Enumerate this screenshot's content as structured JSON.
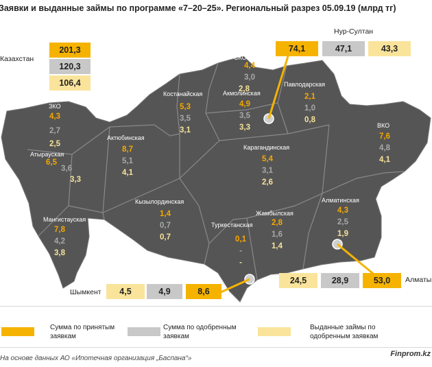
{
  "title": "Заявки и выданные займы по программе «7–20–25». Региональный разрез 05.09.19 (млрд тг)",
  "colors": {
    "accepted": "#f5b300",
    "approved": "#c8c8c8",
    "issued": "#fae49b",
    "map": "#555555"
  },
  "kazakhstan": {
    "label": "Казахстан",
    "accepted": "201,3",
    "approved": "120,3",
    "issued": "106,4"
  },
  "nursultan": {
    "label": "Нур-Султан",
    "accepted": "74,1",
    "approved": "47,1",
    "issued": "43,3"
  },
  "almaty": {
    "label": "Алматы",
    "issued": "24,5",
    "approved": "28,9",
    "accepted": "53,0"
  },
  "shymkent": {
    "label": "Шымкент",
    "issued": "4,5",
    "approved": "4,9",
    "accepted": "8,6"
  },
  "regions": [
    {
      "name": "СКО",
      "accepted": "4,4",
      "approved": "3,0",
      "issued": "2,8"
    },
    {
      "name": "Костанайская",
      "accepted": "5,3",
      "approved": "3,5",
      "issued": "3,1"
    },
    {
      "name": "Акмолинская",
      "accepted": "4,9",
      "approved": "3,5",
      "issued": "3,3"
    },
    {
      "name": "Павлодарская",
      "accepted": "2,1",
      "approved": "1,0",
      "issued": "0,8"
    },
    {
      "name": "ЗКО",
      "accepted": "4,3",
      "approved": "2,7",
      "issued": "2,5"
    },
    {
      "name": "Атырауская",
      "accepted": "6,5",
      "approved": "3,6",
      "issued": "3,3"
    },
    {
      "name": "Актюбинская",
      "accepted": "8,7",
      "approved": "5,1",
      "issued": "4,1"
    },
    {
      "name": "Карагандинская",
      "accepted": "5,4",
      "approved": "3,1",
      "issued": "2,6"
    },
    {
      "name": "ВКО",
      "accepted": "7,6",
      "approved": "4,8",
      "issued": "4,1"
    },
    {
      "name": "Мангистауская",
      "accepted": "7,8",
      "approved": "4,2",
      "issued": "3,8"
    },
    {
      "name": "Кызылординская",
      "accepted": "1,4",
      "approved": "0,7",
      "issued": "0,7"
    },
    {
      "name": "Туркестанская",
      "accepted": "0,1",
      "approved": "-",
      "issued": "-"
    },
    {
      "name": "Жамбылская",
      "accepted": "2,8",
      "approved": "1,6",
      "issued": "1,4"
    },
    {
      "name": "Алматинская",
      "accepted": "4,3",
      "approved": "2,5",
      "issued": "1,9"
    }
  ],
  "legend": [
    {
      "key": "accepted",
      "label": "Сумма по принятым заявкам"
    },
    {
      "key": "approved",
      "label": "Сумма по одобренным заявкам"
    },
    {
      "key": "issued",
      "label": "Выданные займы по одобренным заявкам"
    }
  ],
  "footer": "На основе данных АО «Ипотечная организация „Баспана“»",
  "brand": "Finprom.kz"
}
